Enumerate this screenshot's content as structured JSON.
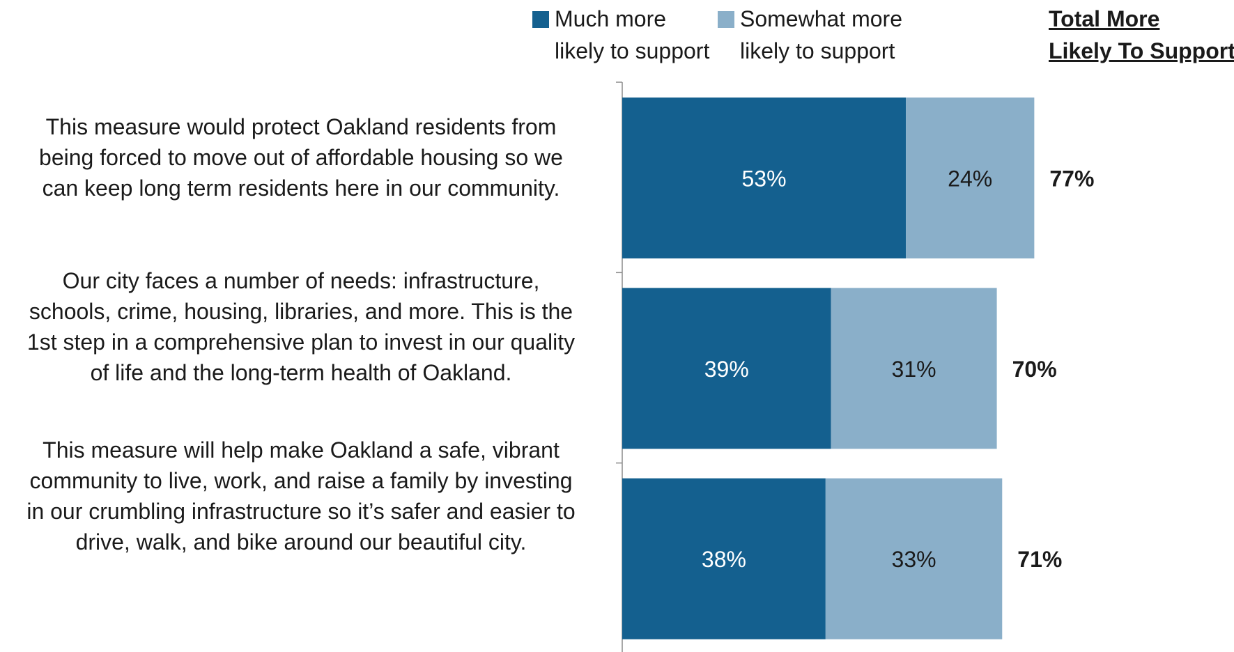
{
  "chart_data": {
    "type": "bar",
    "orientation": "horizontal",
    "stacked": true,
    "categories": [
      "This measure would protect Oakland residents from being forced to move out of affordable housing so we can keep long term residents here in our community.",
      "Our city faces a number of needs: infrastructure, schools, crime, housing, libraries, and more. This is the 1st step in a comprehensive plan to invest in our quality of life and the long-term health of Oakland.",
      "This measure will help make Oakland a safe, vibrant community to live, work, and raise a family by investing in our crumbling infrastructure so it’s safer and easier to drive, walk, and bike around our beautiful city."
    ],
    "category_lines": [
      [
        "This measure would protect Oakland residents from",
        "being forced to move out of affordable housing so we",
        "can keep long term residents here in our community."
      ],
      [
        "Our city faces a number of needs: infrastructure,",
        "schools, crime, housing, libraries, and more. This is the",
        "1st step in a comprehensive plan to invest in our quality",
        "of life and the long-term health of Oakland."
      ],
      [
        "This measure will help make Oakland a safe, vibrant",
        "community to live, work, and raise a family by investing",
        "in our crumbling infrastructure so it’s safer and easier to",
        "drive, walk, and bike around our beautiful city."
      ]
    ],
    "series": [
      {
        "name": "Much more likely to support",
        "name_lines": [
          "Much more",
          "likely to support"
        ],
        "values": [
          53,
          39,
          38
        ],
        "labels": [
          "53%",
          "39%",
          "38%"
        ],
        "color": "#14608f",
        "label_color": "#ffffff"
      },
      {
        "name": "Somewhat more likely to support",
        "name_lines": [
          "Somewhat more",
          "likely to support"
        ],
        "values": [
          24,
          31,
          33
        ],
        "labels": [
          "24%",
          "31%",
          "33%"
        ],
        "color": "#8aafc9",
        "label_color": "#1a1a1a"
      }
    ],
    "totals": {
      "name": "Total More Likely To Support",
      "name_lines": [
        "Total More",
        "Likely To Support"
      ],
      "values": [
        77,
        70,
        71
      ],
      "labels": [
        "77%",
        "70%",
        "71%"
      ]
    },
    "xlim": [
      0,
      100
    ],
    "grid": false,
    "legend_position": "top"
  }
}
